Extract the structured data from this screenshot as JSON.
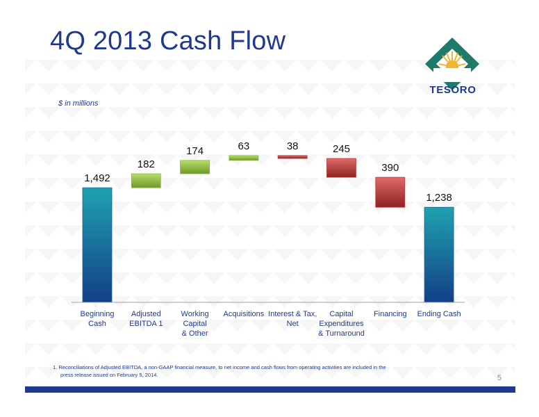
{
  "header": {
    "title": "4Q 2013 Cash Flow"
  },
  "brand": {
    "logo_text": "TESORO",
    "logo_colors": [
      "#1f7a6b",
      "#f2b531",
      "#1f3a8c"
    ]
  },
  "chart_data": {
    "type": "waterfall",
    "units_note": "$ in millions",
    "categories": [
      "Beginning Cash",
      "Adjusted EBITDA",
      "Working Capital & Other",
      "Acquisitions",
      "Interest & Tax, Net",
      "Capital Expenditures & Turnaround",
      "Financing",
      "Ending Cash"
    ],
    "category_lines": [
      [
        "Beginning",
        "Cash"
      ],
      [
        "Adjusted",
        "EBITDA 1"
      ],
      [
        "Working",
        "Capital",
        "& Other"
      ],
      [
        "Acquisitions"
      ],
      [
        "Interest & Tax,",
        "Net"
      ],
      [
        "Capital",
        "Expenditures",
        "& Turnaround"
      ],
      [
        "Financing"
      ],
      [
        "Ending Cash"
      ]
    ],
    "values": [
      1492,
      182,
      174,
      63,
      -38,
      -245,
      -390,
      1238
    ],
    "data_labels": [
      "1,492",
      "182",
      "174",
      "63",
      "38",
      "245",
      "390",
      "1,238"
    ],
    "bar_kinds": [
      "total",
      "increase",
      "increase",
      "increase",
      "decrease",
      "decrease",
      "decrease",
      "total"
    ],
    "colors": {
      "total": "#1b5f95",
      "increase": "#8ab83c",
      "decrease": "#b83a3a"
    }
  },
  "footnote": {
    "line1": "1.  Reconciliations of Adjusted EBITDA, a non-GAAP financial measure, to net income and cash flows from operating activities are included in the",
    "line2": "press release issued on February 5, 2014."
  },
  "page": {
    "number": "5"
  }
}
